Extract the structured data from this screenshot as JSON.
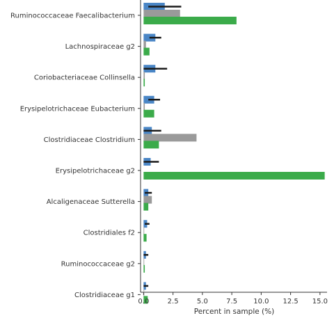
{
  "chart_data": {
    "type": "bar",
    "orientation": "horizontal",
    "xlabel": "Percent in sample (%)",
    "ylabel": "",
    "title": "",
    "xlim": [
      -0.2,
      15.6
    ],
    "xticks": [
      0.0,
      2.5,
      5.0,
      7.5,
      10.0,
      12.5,
      15.0
    ],
    "xtick_labels": [
      "0.0",
      "2.5",
      "5.0",
      "7.5",
      "10.0",
      "12.5",
      "15.0"
    ],
    "grid": false,
    "legend": "none",
    "categories": [
      "Ruminococcaceae Faecalibacterium",
      "Lachnospiraceae g2",
      "Coriobacteriaceae Collinsella",
      "Erysipelotrichaceae Eubacterium",
      "Clostridiaceae Clostridium",
      "Erysipelotrichaceae g2",
      "Alcaligenaceae Sutterella",
      "Clostridiales f2",
      "Ruminococcaceae g2",
      "Clostridiaceae g1"
    ],
    "series": [
      {
        "color": "#4a86c6",
        "values": [
          1.8,
          1.0,
          1.0,
          0.9,
          0.7,
          0.6,
          0.4,
          0.3,
          0.2,
          0.2
        ],
        "error": [
          1.4,
          0.5,
          1.0,
          0.5,
          0.8,
          0.7,
          0.3,
          0.2,
          0.2,
          0.2
        ]
      },
      {
        "color": "#9a9a9a",
        "values": [
          3.1,
          0.2,
          0.1,
          0.1,
          4.5,
          0.0,
          0.7,
          0.05,
          0.05,
          0.05
        ]
      },
      {
        "color": "#3bab4a",
        "values": [
          7.9,
          0.5,
          0.1,
          0.9,
          1.3,
          15.4,
          0.4,
          0.25,
          0.1,
          0.35
        ]
      }
    ]
  }
}
